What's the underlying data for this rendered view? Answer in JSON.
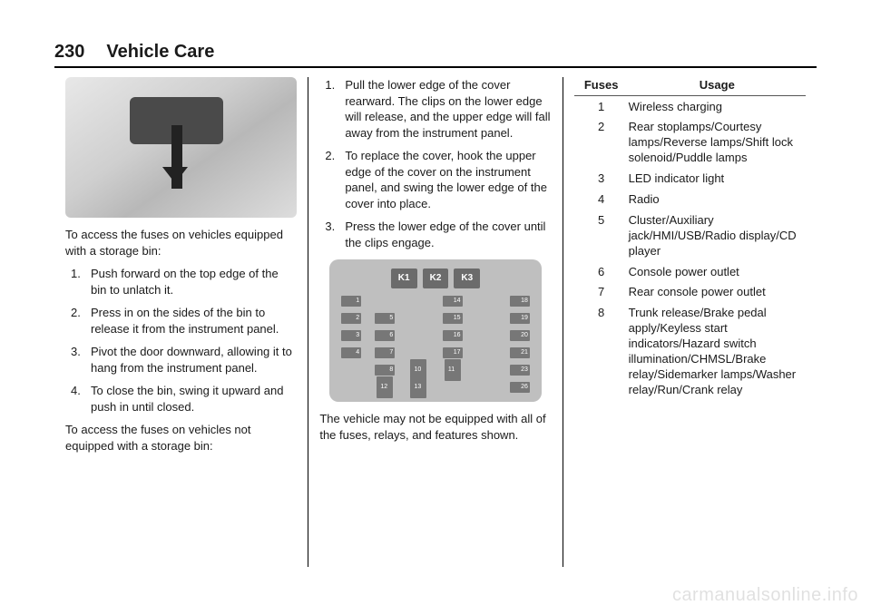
{
  "page_number": "230",
  "section": "Vehicle Care",
  "column1": {
    "intro1": "To access the fuses on vehicles equipped with a storage bin:",
    "steps1": [
      "Push forward on the top edge of the bin to unlatch it.",
      "Press in on the sides of the bin to release it from the instrument panel.",
      "Pivot the door downward, allowing it to hang from the instrument panel.",
      "To close the bin, swing it upward and push in until closed."
    ],
    "intro2": "To access the fuses on vehicles not equipped with a storage bin:"
  },
  "column2": {
    "steps2": [
      "Pull the lower edge of the cover rearward. The clips on the lower edge will release, and the upper edge will fall away from the instrument panel.",
      "To replace the cover, hook the upper edge of the cover on the instrument panel, and swing the lower edge of the cover into place.",
      "Press the lower edge of the cover until the clips engage."
    ],
    "relays": [
      "K1",
      "K2",
      "K3"
    ],
    "note": "The vehicle may not be equipped with all of the fuses, relays, and features shown."
  },
  "column3": {
    "header_fuses": "Fuses",
    "header_usage": "Usage",
    "rows": [
      {
        "n": "1",
        "u": "Wireless charging"
      },
      {
        "n": "2",
        "u": "Rear stoplamps/Courtesy lamps/Reverse lamps/Shift lock solenoid/Puddle lamps"
      },
      {
        "n": "3",
        "u": "LED indicator light"
      },
      {
        "n": "4",
        "u": "Radio"
      },
      {
        "n": "5",
        "u": "Cluster/Auxiliary jack/HMI/USB/Radio display/CD player"
      },
      {
        "n": "6",
        "u": "Console power outlet"
      },
      {
        "n": "7",
        "u": "Rear console power outlet"
      },
      {
        "n": "8",
        "u": "Trunk release/Brake pedal apply/Keyless start indicators/Hazard switch illumination/CHMSL/Brake relay/Sidemarker lamps/Washer relay/Run/Crank relay"
      }
    ]
  },
  "watermark": "carmanualsonline.info",
  "colors": {
    "text": "#1a1a1a",
    "rule": "#000000",
    "diagram_bg": "#bfbfbf",
    "block": "#6b6b6b"
  }
}
